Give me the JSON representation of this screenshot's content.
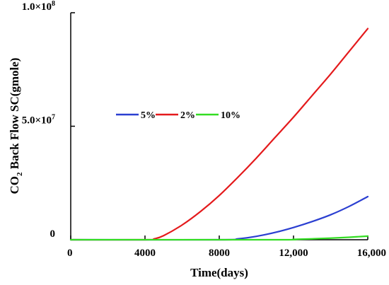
{
  "chart_data": {
    "type": "line",
    "title": "",
    "xlabel": "Time(days)",
    "ylabel_main": "CO",
    "ylabel_sub": "2",
    "ylabel_rest": " Back Flow SC(gmole)",
    "xlim": [
      0,
      16000
    ],
    "ylim": [
      0,
      100000000
    ],
    "x_ticks": [
      {
        "value": 0,
        "label": "0"
      },
      {
        "value": 4000,
        "label": "4000"
      },
      {
        "value": 8000,
        "label": "8000"
      },
      {
        "value": 12000,
        "label": "12,000"
      },
      {
        "value": 16000,
        "label": "16,000"
      }
    ],
    "y_ticks": [
      {
        "value": 0,
        "label": "0"
      },
      {
        "value": 50000000,
        "label": "5.0×10",
        "exp": "7"
      },
      {
        "value": 100000000,
        "label": "1.0×10",
        "exp": "8"
      }
    ],
    "legend_position": "upper-left",
    "grid": false,
    "series": [
      {
        "name": "5%",
        "color": "#2b3fd1",
        "x": [
          0,
          8000,
          9000,
          10000,
          11000,
          12000,
          13000,
          14000,
          15000,
          16000
        ],
        "y": [
          0,
          0,
          400000,
          1500000,
          3200000,
          5400000,
          8000000,
          11000000,
          14700000,
          19000000
        ]
      },
      {
        "name": "2%",
        "color": "#e41a1c",
        "x": [
          0,
          4000,
          4500,
          5000,
          6000,
          7000,
          8000,
          9000,
          10000,
          11000,
          12000,
          13000,
          14000,
          15000,
          16000
        ],
        "y": [
          0,
          0,
          400000,
          1800000,
          6500000,
          12500000,
          19500000,
          27500000,
          36000000,
          45000000,
          54000000,
          63500000,
          73000000,
          83000000,
          93000000
        ]
      },
      {
        "name": "10%",
        "color": "#33dd22",
        "x": [
          0,
          11000,
          12000,
          13000,
          14000,
          15000,
          16000
        ],
        "y": [
          0,
          0,
          150000,
          400000,
          700000,
          1100000,
          1600000
        ]
      }
    ]
  }
}
